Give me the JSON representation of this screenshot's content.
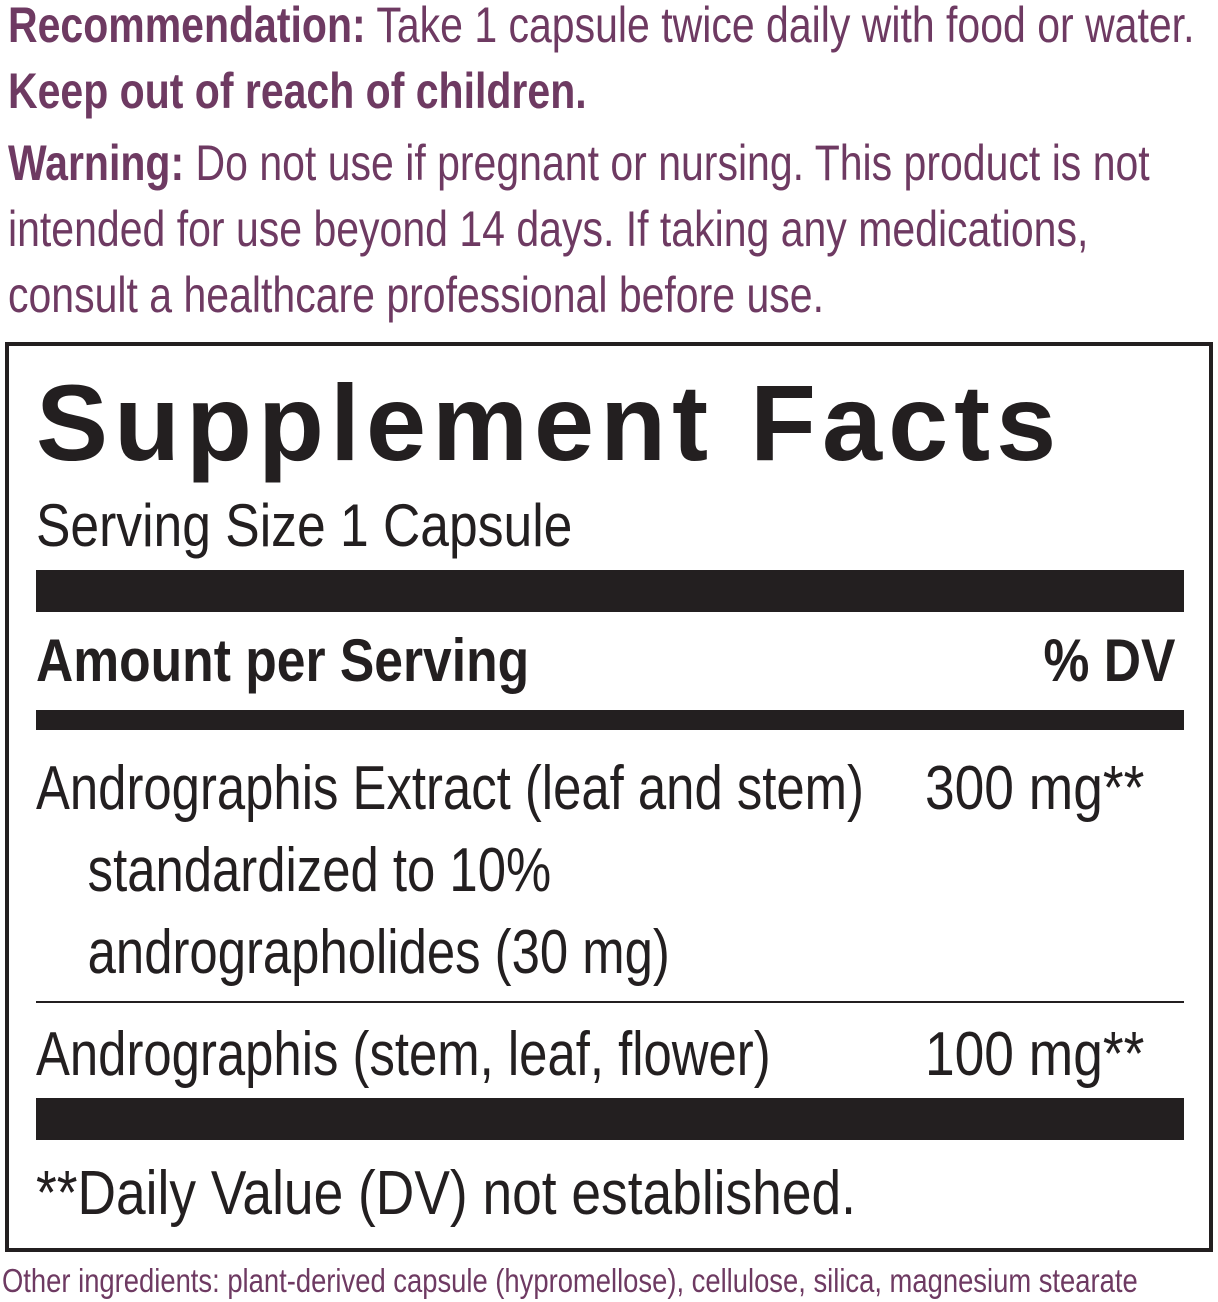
{
  "recommendation": {
    "label": "Recommendation:",
    "text": "Take 1 capsule twice daily with food or water.",
    "emphasis": "Keep out of reach of children."
  },
  "warning": {
    "label": "Warning:",
    "text": "Do not use if pregnant or nursing. This product is not intended for use beyond 14 days. If taking any medications, consult a healthcare professional before use."
  },
  "facts": {
    "title": "Supplement Facts",
    "serving_size": "Serving Size 1 Capsule",
    "header": {
      "amount": "Amount per Serving",
      "dv": "% DV"
    },
    "rows": [
      {
        "name": "Andrographis Extract (leaf and stem) standardized to 10% andrographolides (30 mg)",
        "amount": "300 mg**"
      },
      {
        "name": "Andrographis (stem, leaf, flower)",
        "amount": "100 mg**"
      }
    ],
    "footnote": "**Daily Value (DV) not established."
  },
  "other_ingredients": "Other ingredients: plant-derived capsule (hypromellose), cellulose, silica, magnesium stearate"
}
